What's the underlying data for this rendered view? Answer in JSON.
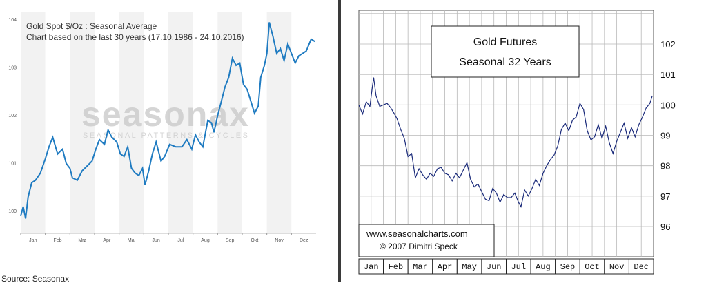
{
  "left": {
    "title": "Gold Spot   $/Oz : Seasonal Average",
    "subtitle": "Chart based on the last 30 years (17.10.1986 - 24.10.2016)",
    "watermark": "seasonax",
    "watermark_tagline": "SEASONAL PATTERNS & CYCLES",
    "source": "Source: Seasonax",
    "line_color": "#1f7bc1"
  },
  "right": {
    "title_line1": "Gold Futures",
    "title_line2": "Seasonal 32 Years",
    "credit_line1": "www.seasonalcharts.com",
    "credit_line2": "© 2007  Dimitri Speck",
    "line_color": "#1a2a7a"
  },
  "chart_data": [
    {
      "type": "line",
      "title": "Gold Spot   $/Oz : Seasonal Average",
      "subtitle": "Chart based on the last 30 years (17.10.1986 - 24.10.2016)",
      "x_ticks": [
        "Jan",
        "Feb",
        "Mrz",
        "Apr",
        "Mai",
        "Jun",
        "Jul",
        "Aug",
        "Sep",
        "Okt",
        "Nov",
        "Dez"
      ],
      "y_ticks": [
        100,
        101,
        102,
        103,
        104
      ],
      "ylim": [
        99.75,
        104.1
      ],
      "grid": false,
      "series": [
        {
          "x": [
            0,
            0.1,
            0.2,
            0.3,
            0.45,
            0.6,
            0.8,
            1.0,
            1.15,
            1.3,
            1.5,
            1.7,
            1.85,
            2.0,
            2.1,
            2.3,
            2.5,
            2.7,
            2.9,
            3.05,
            3.2,
            3.4,
            3.55,
            3.7,
            3.9,
            4.05,
            4.2,
            4.35,
            4.5,
            4.65,
            4.8,
            4.95,
            5.05,
            5.2,
            5.35,
            5.5,
            5.7,
            5.85,
            6.05,
            6.3,
            6.55,
            6.75,
            6.95,
            7.1,
            7.25,
            7.4,
            7.6,
            7.75,
            7.85,
            8.0,
            8.15,
            8.3,
            8.45,
            8.6,
            8.75,
            8.9,
            9.05,
            9.2,
            9.35,
            9.5,
            9.65,
            9.75,
            9.9,
            10.0,
            10.1,
            10.25,
            10.4,
            10.55,
            10.7,
            10.85,
            11.0,
            11.15,
            11.3,
            11.45,
            11.6,
            11.8,
            11.95
          ],
          "y": [
            99.9,
            100.1,
            99.85,
            100.3,
            100.6,
            100.65,
            100.8,
            101.1,
            101.35,
            101.55,
            101.2,
            101.3,
            101.0,
            100.9,
            100.7,
            100.65,
            100.85,
            100.95,
            101.05,
            101.3,
            101.5,
            101.4,
            101.7,
            101.55,
            101.45,
            101.2,
            101.15,
            101.35,
            100.9,
            100.8,
            100.75,
            100.9,
            100.55,
            100.85,
            101.2,
            101.45,
            101.05,
            101.15,
            101.4,
            101.35,
            101.35,
            101.5,
            101.3,
            101.6,
            101.45,
            101.35,
            101.9,
            101.85,
            101.65,
            102.0,
            102.3,
            102.6,
            102.8,
            103.2,
            103.05,
            103.1,
            102.65,
            102.55,
            102.3,
            102.05,
            102.2,
            102.8,
            103.05,
            103.3,
            103.95,
            103.65,
            103.3,
            103.4,
            103.15,
            103.5,
            103.3,
            103.1,
            103.25,
            103.3,
            103.35,
            103.6,
            103.55
          ],
          "style": "blue line"
        }
      ]
    },
    {
      "type": "line",
      "title": "Gold Futures",
      "subtitle": "Seasonal 32 Years",
      "x_ticks": [
        "Jan",
        "Feb",
        "Mar",
        "Apr",
        "May",
        "Jun",
        "Jul",
        "Aug",
        "Sep",
        "Oct",
        "Nov",
        "Dec"
      ],
      "y_ticks": [
        96,
        97,
        98,
        99,
        100,
        101,
        102
      ],
      "ylim": [
        95.25,
        102.7
      ],
      "grid": true,
      "series": [
        {
          "x": [
            0,
            0.15,
            0.3,
            0.45,
            0.55,
            0.6,
            0.7,
            0.85,
            1.0,
            1.15,
            1.3,
            1.45,
            1.55,
            1.7,
            1.85,
            2.0,
            2.15,
            2.3,
            2.45,
            2.6,
            2.75,
            2.9,
            3.05,
            3.2,
            3.35,
            3.5,
            3.65,
            3.8,
            3.95,
            4.1,
            4.25,
            4.4,
            4.55,
            4.7,
            4.85,
            5.0,
            5.15,
            5.3,
            5.45,
            5.6,
            5.75,
            5.9,
            6.05,
            6.2,
            6.35,
            6.5,
            6.6,
            6.75,
            6.9,
            7.05,
            7.2,
            7.35,
            7.5,
            7.65,
            7.8,
            7.95,
            8.1,
            8.25,
            8.4,
            8.55,
            8.7,
            8.85,
            9.0,
            9.15,
            9.3,
            9.45,
            9.6,
            9.75,
            9.9,
            10.05,
            10.2,
            10.35,
            10.5,
            10.65,
            10.8,
            10.95,
            11.1,
            11.25,
            11.4,
            11.55,
            11.7,
            11.85,
            11.95
          ],
          "y": [
            100.0,
            99.7,
            100.1,
            99.95,
            100.6,
            100.9,
            100.3,
            99.95,
            100.0,
            100.05,
            99.9,
            99.7,
            99.55,
            99.2,
            98.9,
            98.3,
            98.4,
            97.6,
            97.9,
            97.7,
            97.55,
            97.75,
            97.65,
            97.9,
            97.95,
            97.75,
            97.7,
            97.5,
            97.75,
            97.6,
            97.85,
            98.1,
            97.55,
            97.3,
            97.4,
            97.15,
            96.9,
            96.85,
            97.25,
            97.1,
            96.8,
            97.05,
            96.95,
            96.95,
            97.1,
            96.8,
            96.65,
            97.2,
            97.0,
            97.25,
            97.55,
            97.35,
            97.75,
            98.0,
            98.2,
            98.35,
            98.65,
            99.2,
            99.4,
            99.15,
            99.5,
            99.6,
            100.05,
            99.85,
            99.15,
            98.85,
            98.95,
            99.35,
            98.9,
            99.3,
            98.75,
            98.4,
            98.8,
            99.1,
            99.4,
            98.9,
            99.25,
            98.95,
            99.35,
            99.6,
            99.9,
            100.05,
            100.3
          ],
          "style": "navy line"
        }
      ]
    }
  ]
}
